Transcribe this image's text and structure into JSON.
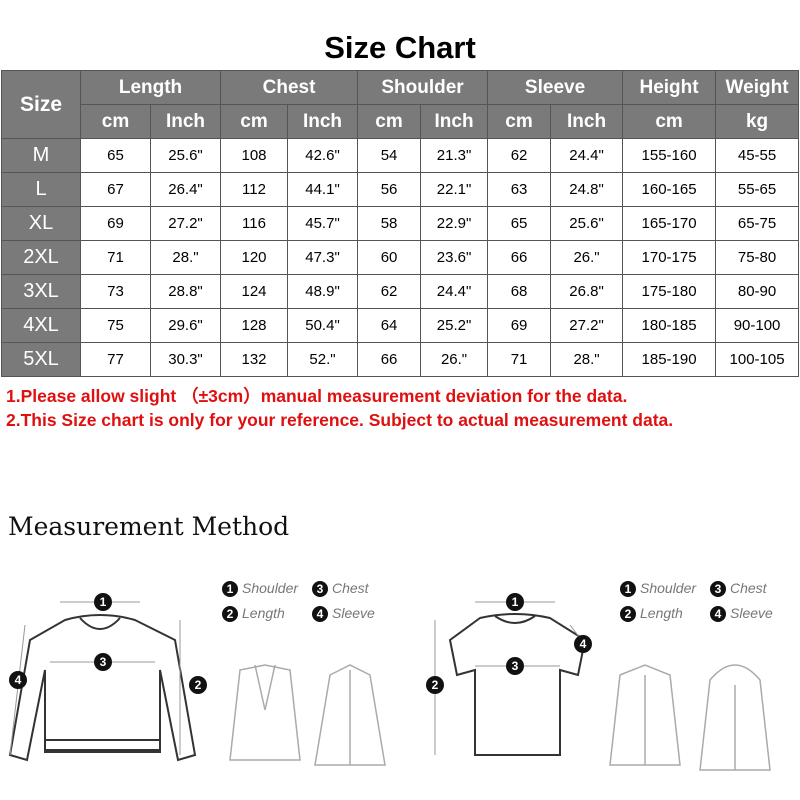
{
  "title": "Size Chart",
  "table": {
    "size_header": "Size",
    "groups": [
      "Length",
      "Chest",
      "Shoulder",
      "Sleeve",
      "Height",
      "Weight"
    ],
    "units": [
      "cm",
      "Inch",
      "cm",
      "Inch",
      "cm",
      "Inch",
      "cm",
      "Inch",
      "cm",
      "kg"
    ],
    "rows": [
      [
        "M",
        "65",
        "25.6\"",
        "108",
        "42.6\"",
        "54",
        "21.3\"",
        "62",
        "24.4\"",
        "155-160",
        "45-55"
      ],
      [
        "L",
        "67",
        "26.4\"",
        "112",
        "44.1\"",
        "56",
        "22.1\"",
        "63",
        "24.8\"",
        "160-165",
        "55-65"
      ],
      [
        "XL",
        "69",
        "27.2\"",
        "116",
        "45.7\"",
        "58",
        "22.9\"",
        "65",
        "25.6\"",
        "165-170",
        "65-75"
      ],
      [
        "2XL",
        "71",
        "28.\"",
        "120",
        "47.3\"",
        "60",
        "23.6\"",
        "66",
        "26.\"",
        "170-175",
        "75-80"
      ],
      [
        "3XL",
        "73",
        "28.8\"",
        "124",
        "48.9\"",
        "62",
        "24.4\"",
        "68",
        "26.8\"",
        "175-180",
        "80-90"
      ],
      [
        "4XL",
        "75",
        "29.6\"",
        "128",
        "50.4\"",
        "64",
        "25.2\"",
        "69",
        "27.2\"",
        "180-185",
        "90-100"
      ],
      [
        "5XL",
        "77",
        "30.3\"",
        "132",
        "52.\"",
        "66",
        "26.\"",
        "71",
        "28.\"",
        "185-190",
        "100-105"
      ]
    ]
  },
  "notes": [
    "1.Please allow slight （±3cm）manual measurement deviation for the data.",
    "2.This Size chart is only for your reference. Subject to actual measurement data."
  ],
  "note_color": "#e01010",
  "method_title": "Measurement Method",
  "legend": [
    {
      "n": "1",
      "label": "Shoulder"
    },
    {
      "n": "2",
      "label": "Length"
    },
    {
      "n": "3",
      "label": "Chest"
    },
    {
      "n": "4",
      "label": "Sleeve"
    }
  ]
}
